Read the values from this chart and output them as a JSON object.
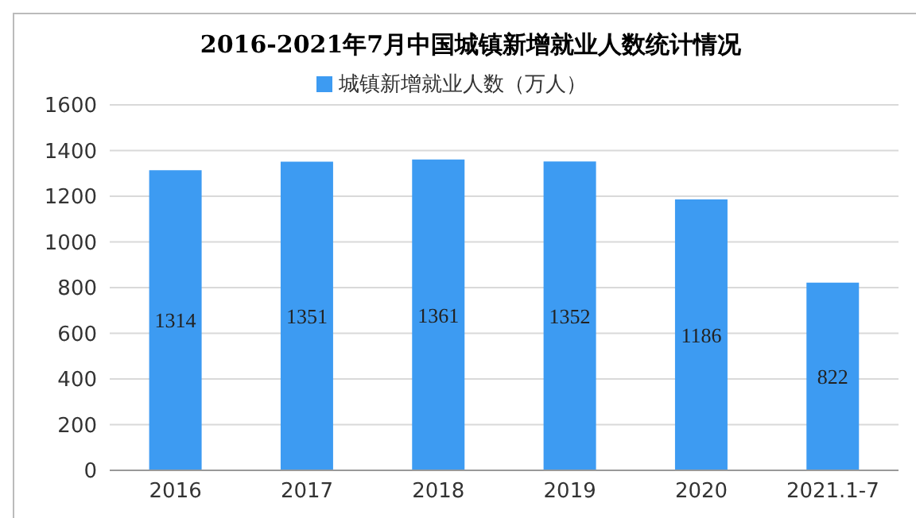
{
  "chart_data": {
    "type": "bar",
    "title": "2016-2021年7月中国城镇新增就业人数统计情况",
    "categories": [
      "2016",
      "2017",
      "2018",
      "2019",
      "2020",
      "2021.1-7"
    ],
    "series": [
      {
        "name": "城镇新增就业人数（万人）",
        "color": "#3d9bf2",
        "values": [
          1314,
          1351,
          1361,
          1352,
          1186,
          822
        ]
      }
    ],
    "ylim": [
      0,
      1600
    ],
    "yticks": [
      0,
      200,
      400,
      600,
      800,
      1000,
      1200,
      1400,
      1600
    ],
    "grid": "y",
    "legend": "top",
    "data_labels": true
  }
}
